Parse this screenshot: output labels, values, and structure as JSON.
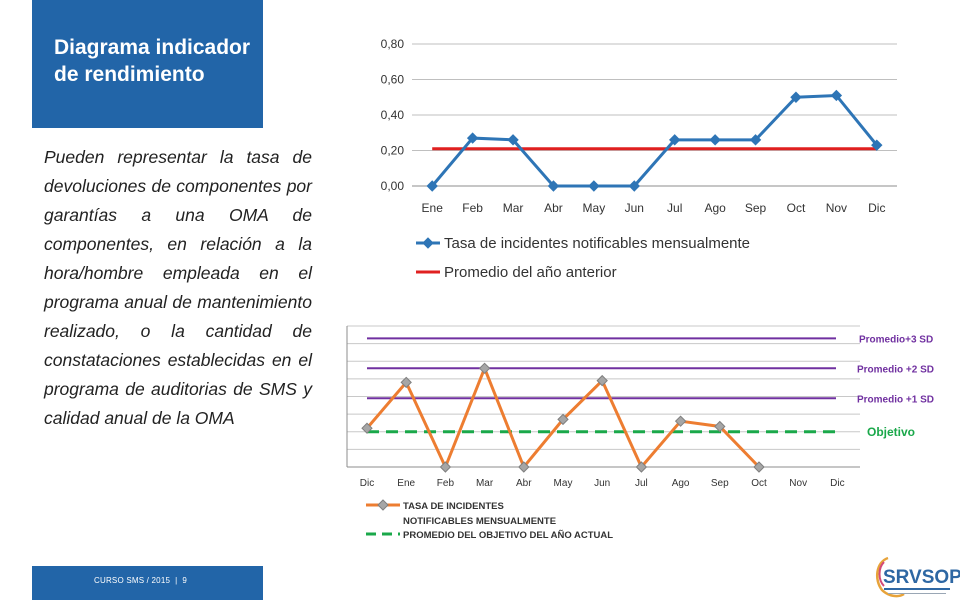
{
  "slide": {
    "title": "Diagrama indicador de rendimiento",
    "body": "Pueden representar la tasa de devoluciones de componentes por garantías a una OMA de componentes, en relación a la hora/hombre empleada en el programa anual de mantenimiento realizado, o la cantidad de constataciones establecidas en el programa de auditorias de SMS y calidad anual de la OMA",
    "footer": {
      "course": "CURSO SMS / 2015",
      "separator": "|",
      "page": "9"
    },
    "logo": {
      "text": "SRVSOP"
    }
  },
  "chart_data": [
    {
      "type": "line",
      "categories": [
        "Ene",
        "Feb",
        "Mar",
        "Abr",
        "May",
        "Jun",
        "Jul",
        "Ago",
        "Sep",
        "Oct",
        "Nov",
        "Dic"
      ],
      "y_ticks": [
        "0,00",
        "0,20",
        "0,40",
        "0,60",
        "0,80"
      ],
      "ylim": [
        0,
        0.8
      ],
      "grid": true,
      "legend_position": "bottom",
      "series": [
        {
          "name": "Tasa de incidentes notificables mensualmente",
          "color": "#2e75b6",
          "marker": "diamond",
          "values": [
            0.0,
            0.27,
            0.26,
            0.0,
            0.0,
            0.0,
            0.26,
            0.26,
            0.26,
            0.5,
            0.51,
            0.23
          ]
        },
        {
          "name": "Promedio del año anterior",
          "color": "#e02020",
          "marker": "none",
          "values": [
            0.21,
            0.21,
            0.21,
            0.21,
            0.21,
            0.21,
            0.21,
            0.21,
            0.21,
            0.21,
            0.21,
            0.21
          ]
        }
      ]
    },
    {
      "type": "line",
      "categories": [
        "Dic",
        "Ene",
        "Feb",
        "Mar",
        "Abr",
        "May",
        "Jun",
        "Jul",
        "Ago",
        "Sep",
        "Oct",
        "Nov",
        "Dic"
      ],
      "ylim": [
        0,
        8
      ],
      "grid": true,
      "legend_position": "bottom",
      "reference_lines": [
        {
          "label": "Promedio+3 SD",
          "value": 7.3,
          "color": "#7030a0",
          "dashed": false
        },
        {
          "label": "Promedio +2 SD",
          "value": 5.6,
          "color": "#7030a0",
          "dashed": false
        },
        {
          "label": "Promedio +1 SD",
          "value": 3.9,
          "color": "#7030a0",
          "dashed": false
        },
        {
          "label": "Objetivo",
          "value": 2.0,
          "color": "#1aa84a",
          "dashed": true
        }
      ],
      "series": [
        {
          "name": "TASA DE INCIDENTES NOTIFICABLES MENSUALMENTE",
          "color": "#ed7d31",
          "marker_color": "#a6a6a6",
          "marker": "diamond",
          "values": [
            2.2,
            4.8,
            0.0,
            5.6,
            0.0,
            2.7,
            4.9,
            0.0,
            2.6,
            2.3,
            0.0,
            null,
            null
          ]
        },
        {
          "name": "PROMEDIO DEL OBJETIVO DEL AÑO ACTUAL",
          "color": "#1aa84a",
          "marker": "none",
          "dashed": true,
          "values": [
            2.0,
            2.0,
            2.0,
            2.0,
            2.0,
            2.0,
            2.0,
            2.0,
            2.0,
            2.0,
            2.0,
            2.0,
            2.0
          ]
        }
      ]
    }
  ]
}
